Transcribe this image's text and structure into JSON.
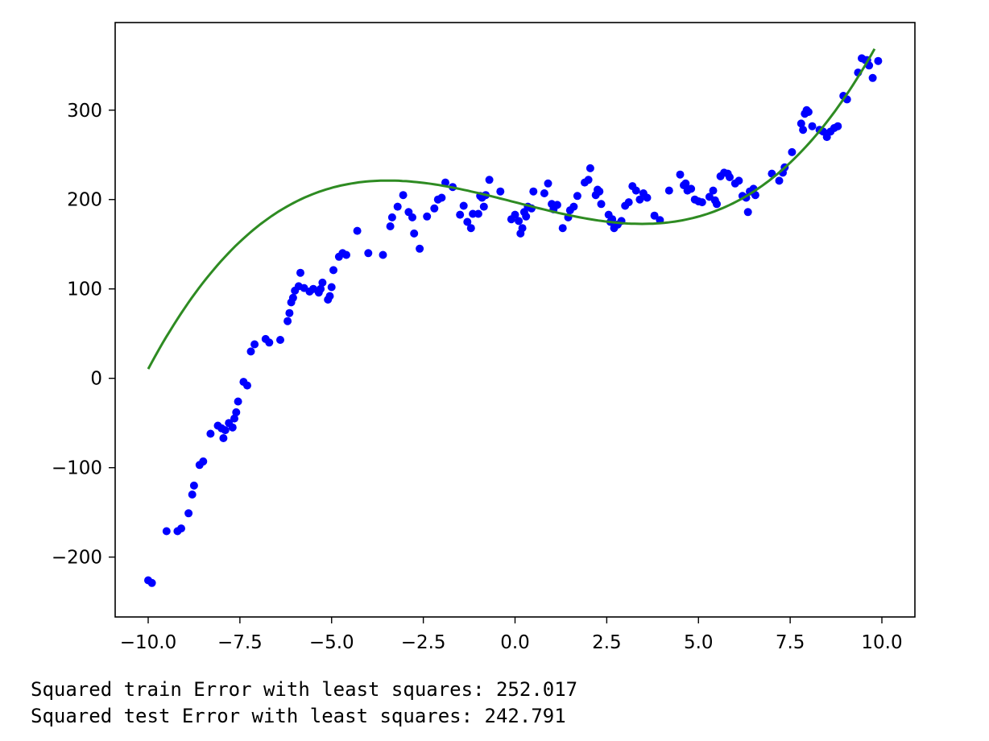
{
  "chart_data": {
    "type": "scatter",
    "title": "",
    "xlabel": "",
    "ylabel": "",
    "xlim": [
      -10.9,
      10.9
    ],
    "ylim": [
      -267,
      398
    ],
    "xticks": [
      -10.0,
      -7.5,
      -5.0,
      -2.5,
      0.0,
      2.5,
      5.0,
      7.5,
      10.0
    ],
    "xtick_labels": [
      "−10.0",
      "−7.5",
      "−5.0",
      "−2.5",
      "0.0",
      "2.5",
      "5.0",
      "7.5",
      "10.0"
    ],
    "yticks": [
      -200,
      -100,
      0,
      100,
      200,
      300
    ],
    "ytick_labels": [
      "−200",
      "−100",
      "0",
      "100",
      "200",
      "300"
    ],
    "grid": false,
    "point_color": "#0000ff",
    "line_color": "#2e8b22",
    "series": [
      {
        "kind": "scatter",
        "points": [
          [
            -10.0,
            -226
          ],
          [
            -9.9,
            -229
          ],
          [
            -9.5,
            -171
          ],
          [
            -9.2,
            -171
          ],
          [
            -9.1,
            -168
          ],
          [
            -8.9,
            -151
          ],
          [
            -8.8,
            -130
          ],
          [
            -8.75,
            -120
          ],
          [
            -8.6,
            -97
          ],
          [
            -8.5,
            -93
          ],
          [
            -8.3,
            -62
          ],
          [
            -8.1,
            -53
          ],
          [
            -8.0,
            -56
          ],
          [
            -7.95,
            -67
          ],
          [
            -7.9,
            -58
          ],
          [
            -7.8,
            -50
          ],
          [
            -7.7,
            -55
          ],
          [
            -7.65,
            -45
          ],
          [
            -7.6,
            -38
          ],
          [
            -7.55,
            -26
          ],
          [
            -7.4,
            -4
          ],
          [
            -7.3,
            -8
          ],
          [
            -7.2,
            30
          ],
          [
            -7.1,
            38
          ],
          [
            -6.8,
            44
          ],
          [
            -6.7,
            40
          ],
          [
            -6.4,
            43
          ],
          [
            -6.2,
            64
          ],
          [
            -6.15,
            73
          ],
          [
            -6.1,
            85
          ],
          [
            -6.05,
            90
          ],
          [
            -6.0,
            98
          ],
          [
            -5.9,
            103
          ],
          [
            -5.85,
            118
          ],
          [
            -5.75,
            101
          ],
          [
            -5.6,
            97
          ],
          [
            -5.5,
            100
          ],
          [
            -5.35,
            96
          ],
          [
            -5.3,
            100
          ],
          [
            -5.25,
            107
          ],
          [
            -5.1,
            88
          ],
          [
            -5.05,
            92
          ],
          [
            -5.0,
            102
          ],
          [
            -4.95,
            121
          ],
          [
            -4.8,
            136
          ],
          [
            -4.7,
            140
          ],
          [
            -4.6,
            138
          ],
          [
            -4.3,
            165
          ],
          [
            -4.0,
            140
          ],
          [
            -3.6,
            138
          ],
          [
            -3.4,
            170
          ],
          [
            -3.35,
            180
          ],
          [
            -3.2,
            192
          ],
          [
            -3.05,
            205
          ],
          [
            -2.9,
            186
          ],
          [
            -2.8,
            180
          ],
          [
            -2.75,
            162
          ],
          [
            -2.6,
            145
          ],
          [
            -2.4,
            181
          ],
          [
            -2.2,
            190
          ],
          [
            -2.1,
            200
          ],
          [
            -2.0,
            202
          ],
          [
            -1.9,
            219
          ],
          [
            -1.7,
            214
          ],
          [
            -1.5,
            183
          ],
          [
            -1.4,
            193
          ],
          [
            -1.3,
            175
          ],
          [
            -1.2,
            168
          ],
          [
            -1.15,
            184
          ],
          [
            -1.0,
            184
          ],
          [
            -0.95,
            204
          ],
          [
            -0.9,
            202
          ],
          [
            -0.85,
            192
          ],
          [
            -0.8,
            205
          ],
          [
            -0.7,
            222
          ],
          [
            -0.4,
            209
          ],
          [
            -0.1,
            178
          ],
          [
            0.0,
            183
          ],
          [
            0.1,
            176
          ],
          [
            0.15,
            162
          ],
          [
            0.2,
            168
          ],
          [
            0.25,
            186
          ],
          [
            0.3,
            181
          ],
          [
            0.35,
            192
          ],
          [
            0.45,
            190
          ],
          [
            0.5,
            209
          ],
          [
            0.8,
            207
          ],
          [
            0.9,
            218
          ],
          [
            1.0,
            195
          ],
          [
            1.05,
            189
          ],
          [
            1.15,
            194
          ],
          [
            1.3,
            168
          ],
          [
            1.45,
            180
          ],
          [
            1.5,
            188
          ],
          [
            1.6,
            192
          ],
          [
            1.7,
            204
          ],
          [
            1.9,
            219
          ],
          [
            2.0,
            222
          ],
          [
            2.05,
            235
          ],
          [
            2.2,
            205
          ],
          [
            2.25,
            211
          ],
          [
            2.3,
            209
          ],
          [
            2.35,
            195
          ],
          [
            2.55,
            183
          ],
          [
            2.6,
            175
          ],
          [
            2.65,
            178
          ],
          [
            2.7,
            168
          ],
          [
            2.8,
            172
          ],
          [
            2.9,
            176
          ],
          [
            3.0,
            193
          ],
          [
            3.1,
            197
          ],
          [
            3.2,
            215
          ],
          [
            3.3,
            210
          ],
          [
            3.4,
            200
          ],
          [
            3.5,
            207
          ],
          [
            3.6,
            202
          ],
          [
            3.8,
            182
          ],
          [
            3.95,
            177
          ],
          [
            4.2,
            210
          ],
          [
            4.5,
            228
          ],
          [
            4.6,
            216
          ],
          [
            4.65,
            218
          ],
          [
            4.7,
            210
          ],
          [
            4.8,
            212
          ],
          [
            4.9,
            200
          ],
          [
            5.0,
            198
          ],
          [
            5.1,
            197
          ],
          [
            5.3,
            203
          ],
          [
            5.4,
            210
          ],
          [
            5.45,
            199
          ],
          [
            5.5,
            195
          ],
          [
            5.6,
            226
          ],
          [
            5.7,
            230
          ],
          [
            5.8,
            229
          ],
          [
            5.85,
            225
          ],
          [
            6.0,
            218
          ],
          [
            6.1,
            221
          ],
          [
            6.2,
            204
          ],
          [
            6.3,
            202
          ],
          [
            6.35,
            186
          ],
          [
            6.4,
            209
          ],
          [
            6.5,
            212
          ],
          [
            6.55,
            205
          ],
          [
            7.0,
            229
          ],
          [
            7.2,
            221
          ],
          [
            7.3,
            230
          ],
          [
            7.35,
            236
          ],
          [
            7.55,
            253
          ],
          [
            7.8,
            285
          ],
          [
            7.85,
            278
          ],
          [
            7.9,
            296
          ],
          [
            7.95,
            300
          ],
          [
            8.0,
            298
          ],
          [
            8.1,
            282
          ],
          [
            8.3,
            278
          ],
          [
            8.4,
            276
          ],
          [
            8.5,
            270
          ],
          [
            8.6,
            276
          ],
          [
            8.7,
            280
          ],
          [
            8.8,
            282
          ],
          [
            8.95,
            316
          ],
          [
            9.05,
            312
          ],
          [
            9.35,
            342
          ],
          [
            9.45,
            358
          ],
          [
            9.55,
            356
          ],
          [
            9.6,
            356
          ],
          [
            9.65,
            350
          ],
          [
            9.75,
            336
          ],
          [
            9.9,
            355
          ]
        ]
      },
      {
        "kind": "line",
        "poly_coefficients": [
          0.2916,
          0.0,
          -10.5,
          197
        ]
      }
    ]
  },
  "output_text": [
    "Squared train Error with least squares: 252.017",
    "Squared test Error with least squares: 242.791"
  ]
}
